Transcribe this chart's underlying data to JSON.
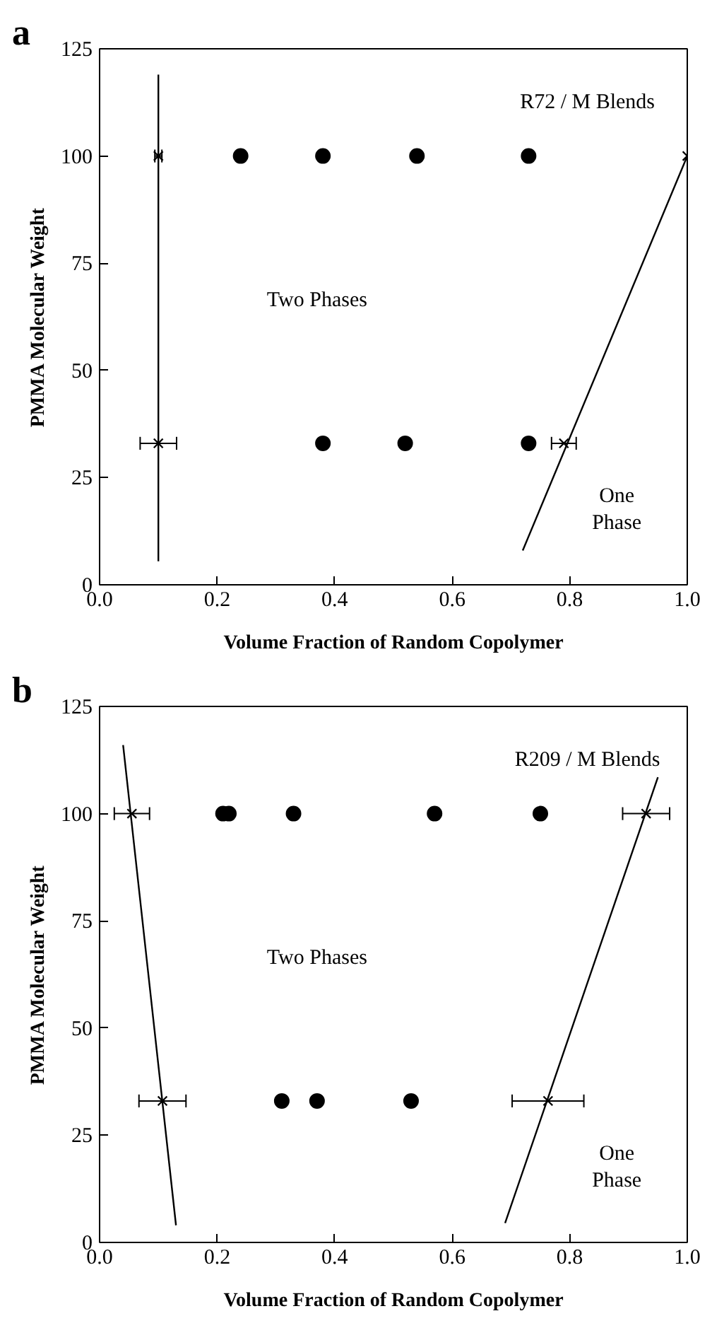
{
  "chart_data": [
    {
      "type": "scatter",
      "title": "a",
      "xlabel": "Volume Fraction of Random Copolymer",
      "ylabel": "PMMA Molecular Weight",
      "annotations": [
        "R72 / M Blends",
        "Two Phases",
        "One\nPhase"
      ],
      "xlim": [
        0,
        1
      ],
      "ylim": [
        0,
        125
      ],
      "xticks": [
        {
          "value": 0,
          "label": "0.0"
        },
        {
          "value": 0.2,
          "label": "0.2"
        },
        {
          "value": 0.4,
          "label": "0.4"
        },
        {
          "value": 0.6,
          "label": "0.6"
        },
        {
          "value": 0.8,
          "label": "0.8"
        },
        {
          "value": 1,
          "label": "1.0"
        }
      ],
      "yticks": [
        0,
        25,
        50,
        75,
        100,
        125
      ],
      "grid": false,
      "series": [
        {
          "type": "scatter",
          "marker": "circle",
          "color": "#000000",
          "x": [
            0.24,
            0.38,
            0.54,
            0.73,
            0.38,
            0.52,
            0.73
          ],
          "values": [
            100,
            100,
            100,
            100,
            33,
            33,
            33
          ]
        },
        {
          "type": "scatter",
          "marker": "cross",
          "color": "#000000",
          "x": [
            0.1,
            1.0,
            0.1,
            0.79
          ],
          "values": [
            100,
            100,
            33,
            33
          ],
          "xerrors": [
            0.006,
            null,
            0.031,
            0.021
          ]
        },
        {
          "type": "line",
          "marker": "none",
          "line_style": "solid",
          "color": "#000000",
          "x": [
            0.1,
            0.1
          ],
          "values": [
            5.5,
            119
          ]
        },
        {
          "type": "line",
          "marker": "none",
          "line_style": "solid",
          "color": "#000000",
          "x": [
            0.72,
            1.0
          ],
          "values": [
            8,
            100
          ]
        }
      ]
    },
    {
      "type": "scatter",
      "title": "b",
      "xlabel": "Volume Fraction of Random Copolymer",
      "ylabel": "PMMA Molecular Weight",
      "annotations": [
        "R209 / M Blends",
        "Two Phases",
        "One\nPhase"
      ],
      "xlim": [
        0,
        1
      ],
      "ylim": [
        0,
        125
      ],
      "xticks": [
        {
          "value": 0,
          "label": "0.0"
        },
        {
          "value": 0.2,
          "label": "0.2"
        },
        {
          "value": 0.4,
          "label": "0.4"
        },
        {
          "value": 0.6,
          "label": "0.6"
        },
        {
          "value": 0.8,
          "label": "0.8"
        },
        {
          "value": 1,
          "label": "1.0"
        }
      ],
      "yticks": [
        0,
        25,
        50,
        75,
        100,
        125
      ],
      "grid": false,
      "series": [
        {
          "type": "scatter",
          "marker": "circle",
          "color": "#000000",
          "x": [
            0.21,
            0.22,
            0.33,
            0.57,
            0.75,
            0.31,
            0.37,
            0.53
          ],
          "values": [
            100,
            100,
            100,
            100,
            100,
            33,
            33,
            33
          ]
        },
        {
          "type": "scatter",
          "marker": "cross",
          "color": "#000000",
          "x": [
            0.055,
            0.93,
            0.107,
            0.763
          ],
          "values": [
            100,
            100,
            33,
            33
          ],
          "xerrors": [
            0.03,
            0.04,
            0.04,
            0.061
          ]
        },
        {
          "type": "line",
          "marker": "none",
          "line_style": "solid",
          "color": "#000000",
          "x": [
            0.04,
            0.13
          ],
          "values": [
            116,
            4
          ]
        },
        {
          "type": "line",
          "marker": "none",
          "line_style": "solid",
          "color": "#000000",
          "x": [
            0.69,
            0.95
          ],
          "values": [
            4.5,
            108.5
          ]
        }
      ]
    }
  ]
}
